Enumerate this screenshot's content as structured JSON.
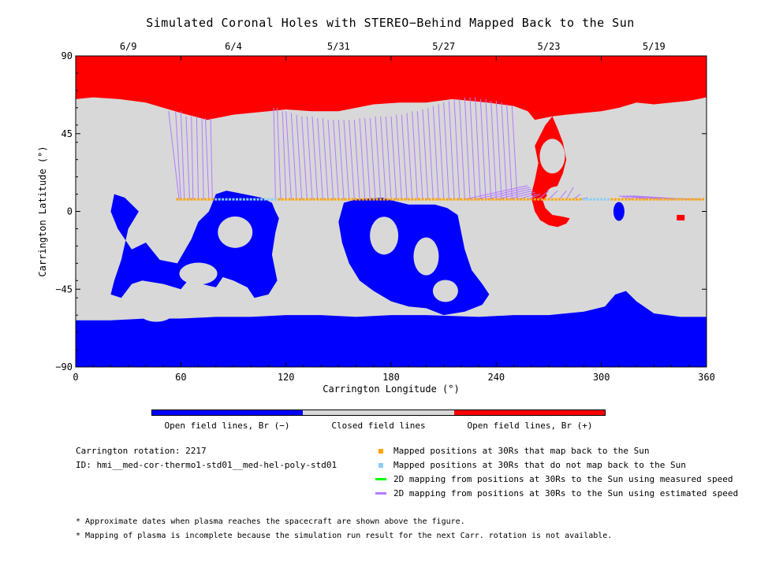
{
  "title": "Simulated Coronal Holes with STEREO−Behind Mapped Back to the Sun",
  "chart_data": {
    "type": "heatmap",
    "title": "Simulated Coronal Holes with STEREO−Behind Mapped Back to the Sun",
    "xlabel": "Carrington Longitude (°)",
    "ylabel": "Carrington Latitude (°)",
    "xlim": [
      0,
      360
    ],
    "ylim": [
      -90,
      90
    ],
    "x_ticks": [
      "0",
      "60",
      "120",
      "180",
      "240",
      "300",
      "360"
    ],
    "y_ticks": [
      "90",
      "45",
      "0",
      "−45",
      "−90"
    ],
    "x_tick_values": [
      0,
      60,
      120,
      180,
      240,
      300,
      360
    ],
    "y_tick_values": [
      90,
      45,
      0,
      -45,
      -90
    ],
    "top_axis_dates": [
      {
        "label": "6/9",
        "lon": 30
      },
      {
        "label": "6/4",
        "lon": 90
      },
      {
        "label": "5/31",
        "lon": 150
      },
      {
        "label": "5/27",
        "lon": 210
      },
      {
        "label": "5/23",
        "lon": 270
      },
      {
        "label": "5/19",
        "lon": 330
      }
    ],
    "colorbar": [
      {
        "label": "Open field lines, Br (−)",
        "color": "#0000ff"
      },
      {
        "label": "Closed field lines",
        "color": "#d8d8d8"
      },
      {
        "label": "Open field lines, Br (+)",
        "color": "#ff0000"
      }
    ],
    "mapped_positions_lat": 7,
    "mapped_lon_range": [
      58,
      359
    ],
    "not_mapped_lon_ranges": [
      [
        80,
        115
      ],
      [
        290,
        305
      ]
    ],
    "purple_footpoints": [
      [
        53,
        58,
        59
      ],
      [
        57,
        58,
        60
      ],
      [
        60,
        58,
        62
      ],
      [
        63,
        55,
        65
      ],
      [
        66,
        55,
        67
      ],
      [
        69,
        55,
        70
      ],
      [
        72,
        54,
        73
      ],
      [
        74,
        54,
        76
      ],
      [
        77,
        54,
        78
      ],
      [
        113,
        60,
        114
      ],
      [
        115,
        60,
        117
      ],
      [
        118,
        58,
        120
      ],
      [
        120,
        58,
        123
      ],
      [
        123,
        57,
        126
      ],
      [
        126,
        56,
        129
      ],
      [
        129,
        55,
        132
      ],
      [
        132,
        55,
        135
      ],
      [
        135,
        55,
        138
      ],
      [
        138,
        54,
        141
      ],
      [
        141,
        54,
        144
      ],
      [
        144,
        53,
        147
      ],
      [
        147,
        53,
        150
      ],
      [
        150,
        53,
        153
      ],
      [
        153,
        53,
        156
      ],
      [
        156,
        53,
        159
      ],
      [
        159,
        53,
        162
      ],
      [
        162,
        54,
        165
      ],
      [
        165,
        54,
        168
      ],
      [
        168,
        54,
        171
      ],
      [
        171,
        55,
        174
      ],
      [
        174,
        55,
        177
      ],
      [
        177,
        55,
        180
      ],
      [
        180,
        55,
        183
      ],
      [
        183,
        56,
        186
      ],
      [
        186,
        56,
        189
      ],
      [
        189,
        57,
        192
      ],
      [
        192,
        58,
        195
      ],
      [
        195,
        58,
        198
      ],
      [
        198,
        59,
        201
      ],
      [
        201,
        60,
        204
      ],
      [
        204,
        61,
        207
      ],
      [
        207,
        62,
        210
      ],
      [
        210,
        63,
        213
      ],
      [
        213,
        64,
        216
      ],
      [
        216,
        65,
        219
      ],
      [
        219,
        65,
        222
      ],
      [
        222,
        66,
        225
      ],
      [
        225,
        66,
        228
      ],
      [
        228,
        66,
        231
      ],
      [
        231,
        65,
        234
      ],
      [
        234,
        65,
        237
      ],
      [
        237,
        64,
        240
      ],
      [
        240,
        64,
        243
      ],
      [
        243,
        63,
        246
      ],
      [
        246,
        62,
        249
      ],
      [
        249,
        61,
        252
      ],
      [
        258,
        15,
        222
      ],
      [
        259,
        14,
        228
      ],
      [
        260,
        13,
        234
      ],
      [
        261,
        12,
        240
      ],
      [
        262,
        11,
        246
      ],
      [
        263,
        10,
        252
      ],
      [
        265,
        10,
        258
      ],
      [
        270,
        12,
        264
      ],
      [
        275,
        12,
        270
      ],
      [
        280,
        12,
        276
      ],
      [
        284,
        14,
        280
      ],
      [
        288,
        10,
        284
      ],
      [
        292,
        8,
        288
      ],
      [
        310,
        9,
        318
      ],
      [
        312,
        9,
        326
      ],
      [
        314,
        9,
        334
      ],
      [
        316,
        9,
        342
      ],
      [
        318,
        9,
        350
      ],
      [
        320,
        8,
        358
      ]
    ]
  },
  "legend": [
    {
      "label": "Mapped positions at 30Rs that map back to the Sun",
      "color": "#ffa500",
      "kind": "square"
    },
    {
      "label": "Mapped positions at 30Rs that do not map back to the Sun",
      "color": "#87cefa",
      "kind": "square"
    },
    {
      "label": "2D mapping from positions at 30Rs to the Sun using measured speed",
      "color": "#00ff00",
      "kind": "line"
    },
    {
      "label": "2D mapping from positions at 30Rs to the Sun using estimated speed",
      "color": "#b27aff",
      "kind": "line"
    }
  ],
  "info": {
    "rotation": "Carrington rotation: 2217",
    "id": "ID: hmi__med-cor-thermo1-std01__med-hel-poly-std01"
  },
  "notes": [
    "* Approximate dates when plasma reaches the spacecraft are shown above the figure.",
    "* Mapping of plasma is incomplete because the simulation run result for the next Carr. rotation is not available."
  ]
}
